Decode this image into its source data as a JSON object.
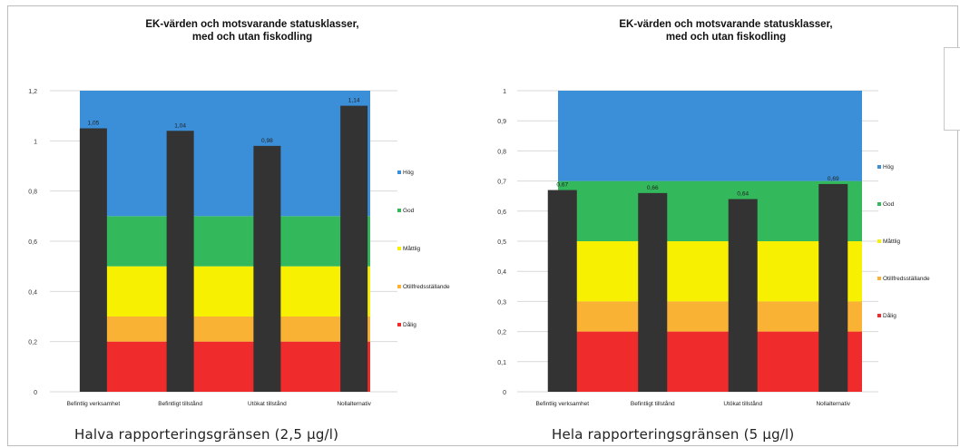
{
  "colors": {
    "hog": "#3a8fd8",
    "god": "#33b85c",
    "maattlig": "#f7f000",
    "otillfredsstallande": "#f9b233",
    "dalig": "#ef2b2b",
    "bar": "#333333",
    "grid": "#d9d9d9"
  },
  "chart_data": [
    {
      "type": "bar",
      "title": "EK-värden och motsvarande statusklasser, med och utan fiskodling",
      "title_lines": [
        "EK-värden och motsvarande statusklasser,",
        "med och utan fiskodling"
      ],
      "caption": "Halva rapporteringsgränsen (2,5 µg/l)",
      "categories": [
        "Befintlig verksamhet",
        "Befintligt tillstånd",
        "Utökat tillstånd",
        "Nollalternativ"
      ],
      "values": [
        1.05,
        1.04,
        0.98,
        1.14
      ],
      "value_labels": [
        "1,05",
        "1,04",
        "0,98",
        "1,14"
      ],
      "ylim": [
        0,
        1.2
      ],
      "yticks": [
        0,
        0.2,
        0.4,
        0.6,
        0.8,
        1,
        1.2
      ],
      "ytick_labels": [
        "0",
        "0,2",
        "0,4",
        "0,6",
        "0,8",
        "1",
        "1,2"
      ],
      "status_bands": [
        {
          "name": "Dålig",
          "from": 0,
          "to": 0.2,
          "color": "dalig"
        },
        {
          "name": "Otillfredsställande",
          "from": 0.2,
          "to": 0.3,
          "color": "otillfredsstallande"
        },
        {
          "name": "Måttlig",
          "from": 0.3,
          "to": 0.5,
          "color": "maattlig"
        },
        {
          "name": "God",
          "from": 0.5,
          "to": 0.7,
          "color": "god"
        },
        {
          "name": "Hög",
          "from": 0.7,
          "to": 1.2,
          "color": "hog"
        }
      ],
      "legend": [
        "Hög",
        "God",
        "Måttlig",
        "Otillfredsställande",
        "Dålig"
      ],
      "legend_colors": [
        "hog",
        "god",
        "maattlig",
        "otillfredsstallande",
        "dalig"
      ],
      "legend_position": "right",
      "grid": true
    },
    {
      "type": "bar",
      "title": "EK-värden och motsvarande statusklasser, med och utan fiskodling",
      "title_lines": [
        "EK-värden och motsvarande statusklasser,",
        "med och utan fiskodling"
      ],
      "caption": "Hela rapporteringsgränsen (5 µg/l)",
      "categories": [
        "Befintlig verksamhet",
        "Befintligt tillstånd",
        "Utökat tillstånd",
        "Nollalternativ"
      ],
      "values": [
        0.67,
        0.66,
        0.64,
        0.69
      ],
      "value_labels": [
        "0,67",
        "0,66",
        "0,64",
        "0,69"
      ],
      "ylim": [
        0,
        1
      ],
      "yticks": [
        0,
        0.1,
        0.2,
        0.3,
        0.4,
        0.5,
        0.6,
        0.7,
        0.8,
        0.9,
        1
      ],
      "ytick_labels": [
        "0",
        "0,1",
        "0,2",
        "0,3",
        "0,4",
        "0,5",
        "0,6",
        "0,7",
        "0,8",
        "0,9",
        "1"
      ],
      "status_bands": [
        {
          "name": "Dålig",
          "from": 0,
          "to": 0.2,
          "color": "dalig"
        },
        {
          "name": "Otillfredsställande",
          "from": 0.2,
          "to": 0.3,
          "color": "otillfredsstallande"
        },
        {
          "name": "Måttlig",
          "from": 0.3,
          "to": 0.5,
          "color": "maattlig"
        },
        {
          "name": "God",
          "from": 0.5,
          "to": 0.7,
          "color": "god"
        },
        {
          "name": "Hög",
          "from": 0.7,
          "to": 1.0,
          "color": "hog"
        }
      ],
      "legend": [
        "Hög",
        "God",
        "Måttlig",
        "Otillfredsställande",
        "Dålig"
      ],
      "legend_colors": [
        "hog",
        "god",
        "maattlig",
        "otillfredsstallande",
        "dalig"
      ],
      "legend_position": "right",
      "grid": true
    }
  ]
}
